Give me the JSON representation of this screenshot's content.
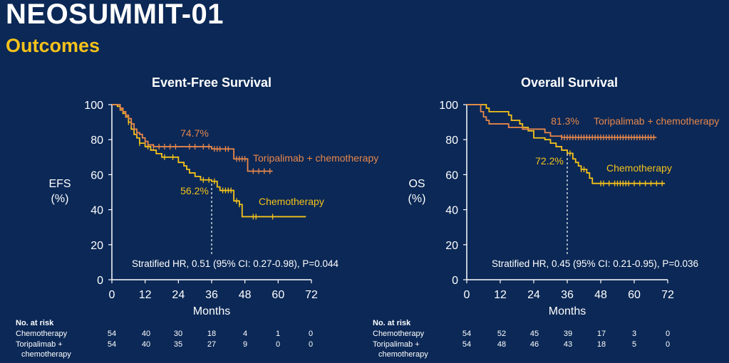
{
  "title": "NEOSUMMIT-01",
  "subtitle": "Outcomes",
  "colors": {
    "background": "#0b2856",
    "toripalimab": "#e8874a",
    "chemotherapy": "#f5c21b",
    "accent": "#f5c21b"
  },
  "chart_data": [
    {
      "type": "line",
      "title": "Event-Free Survival",
      "ylabel_line1": "EFS",
      "ylabel_line2": "(%)",
      "xlabel": "Months",
      "xlim": [
        0,
        72
      ],
      "ylim": [
        0,
        100
      ],
      "xticks": [
        0,
        12,
        24,
        36,
        48,
        60,
        72
      ],
      "yticks": [
        0,
        20,
        40,
        60,
        80,
        100
      ],
      "hr_text": "Stratified HR, 0.51 (95% CI:  0.27-0.98), P=0.044",
      "series": [
        {
          "name": "Toripalimab + chemotherapy",
          "label": "Toripalimab + chemotherapy",
          "annotation": "74.7%",
          "color": "#e8874a",
          "steps": [
            [
              0,
              100
            ],
            [
              3,
              98
            ],
            [
              4,
              96
            ],
            [
              5,
              94
            ],
            [
              6,
              92
            ],
            [
              7,
              89
            ],
            [
              8,
              86
            ],
            [
              9,
              84
            ],
            [
              10,
              83
            ],
            [
              11,
              81
            ],
            [
              12,
              79
            ],
            [
              13,
              77
            ],
            [
              15,
              76
            ],
            [
              36,
              74.7
            ],
            [
              44,
              69
            ],
            [
              49,
              62
            ],
            [
              58,
              62
            ]
          ],
          "censors": [
            3,
            5,
            7,
            9,
            12,
            15,
            17,
            19,
            21,
            23,
            28,
            30,
            33,
            35,
            37,
            38,
            39,
            41,
            42,
            45,
            46,
            47,
            48,
            51,
            53,
            55,
            57
          ]
        },
        {
          "name": "Chemotherapy",
          "label": "Chemotherapy",
          "annotation": "56.2%",
          "color": "#f5c21b",
          "steps": [
            [
              0,
              100
            ],
            [
              2,
              99
            ],
            [
              3,
              97
            ],
            [
              4,
              95
            ],
            [
              5,
              93
            ],
            [
              6,
              90
            ],
            [
              7,
              86
            ],
            [
              8,
              83
            ],
            [
              9,
              81
            ],
            [
              10,
              78
            ],
            [
              12,
              76
            ],
            [
              14,
              74
            ],
            [
              16,
              72
            ],
            [
              18,
              70
            ],
            [
              24,
              67
            ],
            [
              26,
              65
            ],
            [
              27,
              63
            ],
            [
              28,
              61
            ],
            [
              30,
              59
            ],
            [
              32,
              57
            ],
            [
              36,
              56.2
            ],
            [
              38,
              53
            ],
            [
              39,
              51
            ],
            [
              44,
              45
            ],
            [
              46,
              43
            ],
            [
              47,
              36
            ],
            [
              70,
              36
            ]
          ],
          "censors": [
            6,
            10,
            13,
            19,
            22,
            33,
            35,
            37,
            40,
            41,
            42,
            43,
            45,
            46,
            51,
            52,
            58
          ]
        }
      ],
      "risk_table": {
        "header": "No. at risk",
        "rows": [
          {
            "label": "Chemotherapy",
            "values": [
              54,
              40,
              30,
              18,
              4,
              1,
              0
            ]
          },
          {
            "label": "Toripalimab +",
            "label2": "chemotherapy",
            "values": [
              54,
              40,
              35,
              27,
              9,
              0,
              0
            ]
          }
        ]
      }
    },
    {
      "type": "line",
      "title": "Overall Survival",
      "ylabel_line1": "OS",
      "ylabel_line2": "(%)",
      "xlabel": "Months",
      "xlim": [
        0,
        72
      ],
      "ylim": [
        0,
        100
      ],
      "xticks": [
        0,
        12,
        24,
        36,
        48,
        60,
        72
      ],
      "yticks": [
        0,
        20,
        40,
        60,
        80,
        100
      ],
      "hr_text": "Stratified HR, 0.45 (95% CI:  0.21-0.95), P=0.036",
      "series": [
        {
          "name": "Toripalimab + chemotherapy",
          "label": "Toripalimab + chemotherapy",
          "annotation": "81.3%",
          "color": "#e8874a",
          "steps": [
            [
              0,
              100
            ],
            [
              5,
              96
            ],
            [
              6,
              93
            ],
            [
              7,
              91
            ],
            [
              8,
              89
            ],
            [
              12,
              89
            ],
            [
              15,
              87
            ],
            [
              20,
              86
            ],
            [
              28,
              84
            ],
            [
              30,
              82
            ],
            [
              34,
              81.3
            ],
            [
              68,
              81.3
            ]
          ],
          "censors": [
            34,
            35,
            36,
            37,
            38,
            39,
            40,
            41,
            42,
            43,
            44,
            45,
            46,
            47,
            48,
            49,
            50,
            51,
            52,
            53,
            54,
            55,
            56,
            57,
            58,
            59,
            60,
            61,
            62,
            63,
            64,
            65,
            66,
            67
          ]
        },
        {
          "name": "Chemotherapy",
          "label": "Chemotherapy",
          "annotation": "72.2%",
          "color": "#f5c21b",
          "steps": [
            [
              0,
              100
            ],
            [
              7,
              98
            ],
            [
              8,
              96
            ],
            [
              12,
              96
            ],
            [
              15,
              94
            ],
            [
              16,
              91
            ],
            [
              19,
              89
            ],
            [
              20,
              87
            ],
            [
              22,
              85
            ],
            [
              24,
              81
            ],
            [
              28,
              80
            ],
            [
              30,
              78
            ],
            [
              32,
              76
            ],
            [
              34,
              74
            ],
            [
              36,
              72.2
            ],
            [
              38,
              69
            ],
            [
              39,
              67
            ],
            [
              40,
              65
            ],
            [
              41,
              63
            ],
            [
              43,
              61
            ],
            [
              44,
              58
            ],
            [
              45,
              55
            ],
            [
              71,
              55
            ]
          ],
          "censors": [
            37,
            41,
            42,
            48,
            49,
            51,
            53,
            54,
            55,
            56,
            57,
            58,
            60,
            62,
            64,
            66,
            68,
            70
          ]
        }
      ],
      "risk_table": {
        "header": "No. at risk",
        "rows": [
          {
            "label": "Chemotherapy",
            "values": [
              54,
              52,
              45,
              39,
              17,
              3,
              0
            ]
          },
          {
            "label": "Toripalimab +",
            "label2": "chemotherapy",
            "values": [
              54,
              48,
              46,
              43,
              18,
              5,
              0
            ]
          }
        ]
      }
    }
  ]
}
